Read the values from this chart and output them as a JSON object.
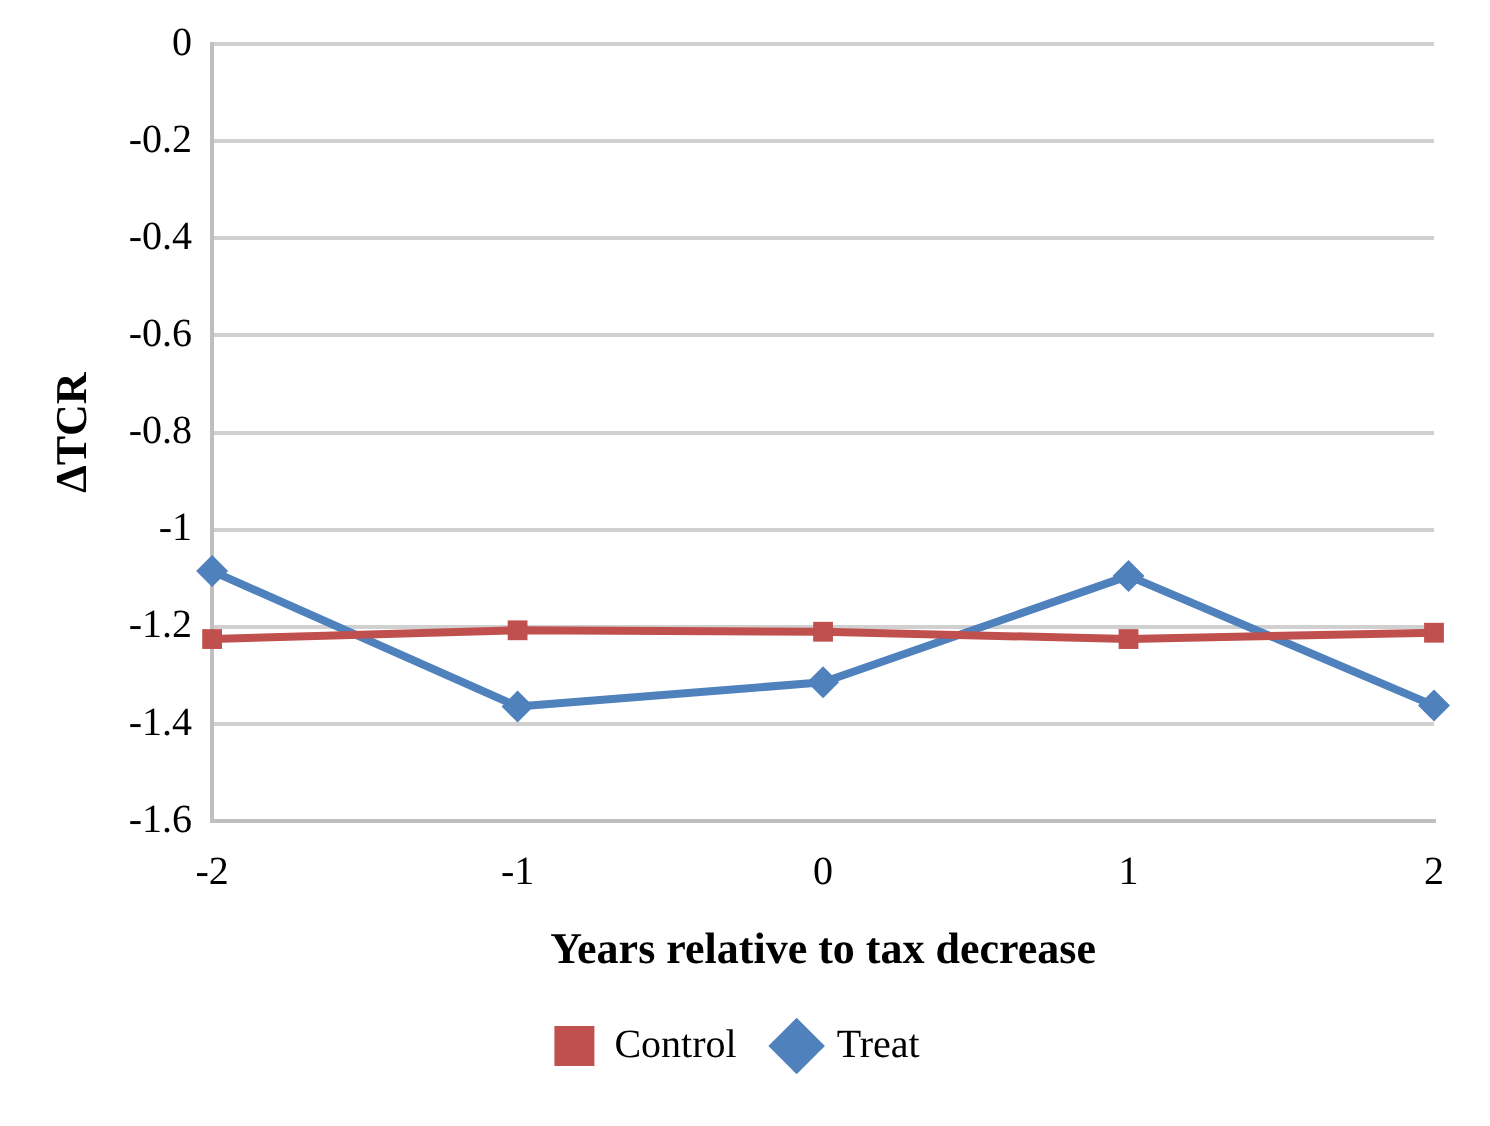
{
  "chart_data": {
    "type": "line",
    "xlabel": "Years relative to tax decrease",
    "ylabel": "ΔTCR",
    "x": [
      -2,
      -1,
      0,
      1,
      2
    ],
    "series": [
      {
        "name": "Control",
        "color": "#c0504d",
        "marker": "square",
        "values": [
          -1.225,
          -1.207,
          -1.21,
          -1.225,
          -1.212
        ]
      },
      {
        "name": "Treat",
        "color": "#4f81bd",
        "marker": "diamond",
        "values": [
          -1.085,
          -1.364,
          -1.314,
          -1.095,
          -1.362
        ]
      }
    ],
    "xlim": [
      -2,
      2
    ],
    "xticks": [
      -2,
      -1,
      0,
      1,
      2
    ],
    "ylim": [
      -1.6,
      0
    ],
    "yticks": [
      0,
      -0.2,
      -0.4,
      -0.6,
      -0.8,
      -1,
      -1.2,
      -1.4,
      -1.6
    ],
    "grid": "y",
    "legend": "bottom",
    "line_style": "solid"
  }
}
